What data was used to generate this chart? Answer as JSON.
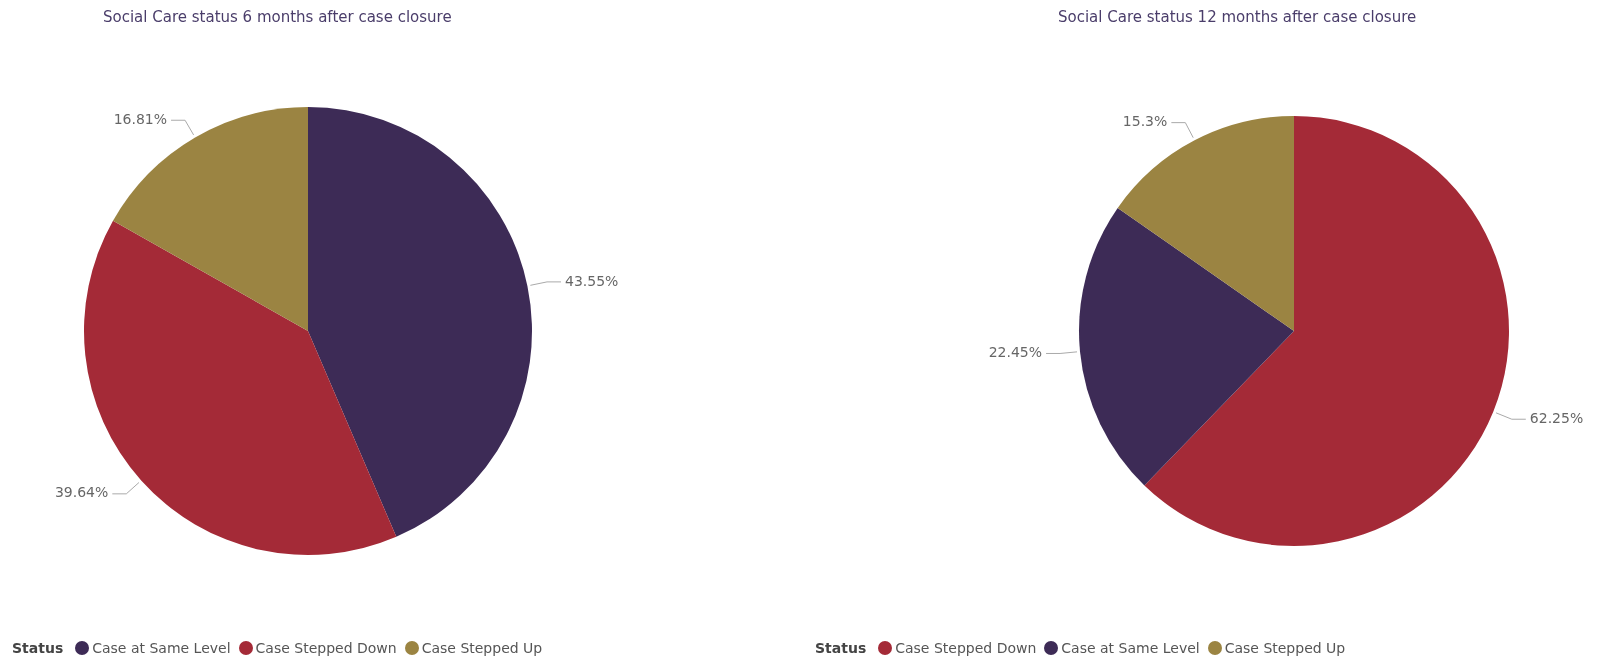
{
  "chart_data": [
    {
      "type": "pie",
      "title": "Social Care status 6 months after case closure",
      "legend_title": "Status",
      "legend": "bottom left",
      "categories": [
        "Case at Same Level",
        "Case Stepped Down",
        "Case Stepped Up"
      ],
      "values": [
        43.55,
        39.64,
        16.81
      ],
      "value_labels": [
        "43.55%",
        "39.64%",
        "16.81%"
      ],
      "colors": [
        "#3d2b56",
        "#a42a37",
        "#9b8442"
      ]
    },
    {
      "type": "pie",
      "title": "Social Care status 12 months after case closure",
      "legend_title": "Status",
      "legend": "bottom left",
      "categories": [
        "Case Stepped Down",
        "Case at Same Level",
        "Case Stepped Up"
      ],
      "values": [
        62.25,
        22.45,
        15.3
      ],
      "value_labels": [
        "62.25%",
        "22.45%",
        "15.3%"
      ],
      "colors": [
        "#a42a37",
        "#3d2b56",
        "#9b8442"
      ]
    }
  ]
}
